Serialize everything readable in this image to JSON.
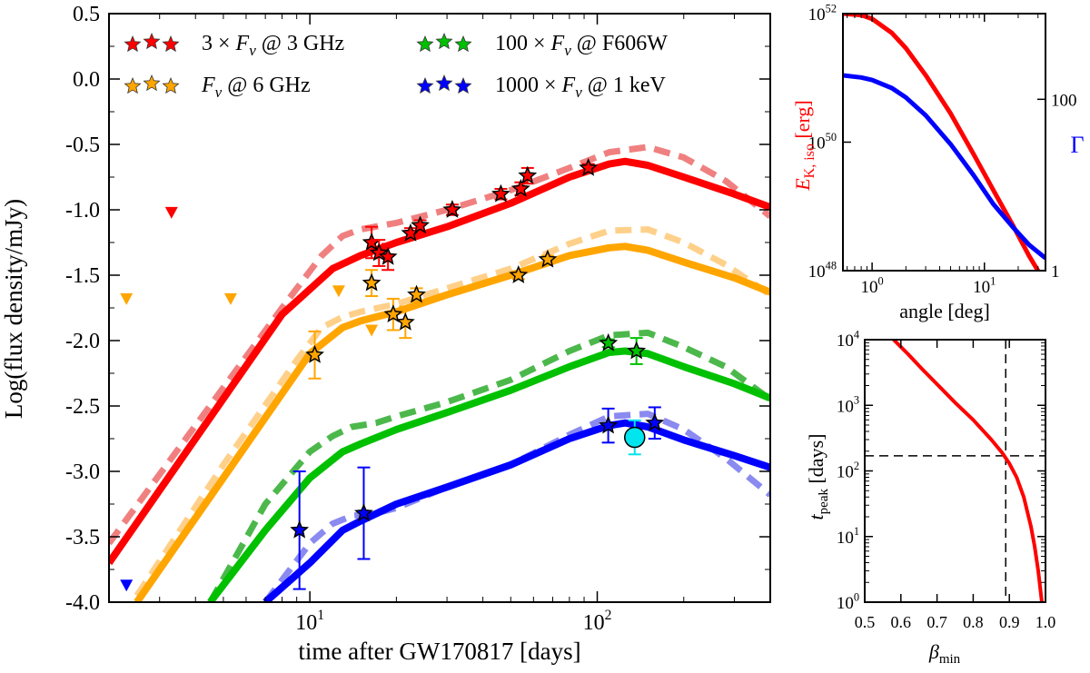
{
  "chart_data": [
    {
      "type": "line",
      "xlabel": "time after GW170817 [days]",
      "ylabel": "Log(flux density/mJy)",
      "xscale": "log",
      "xlim": [
        2,
        400
      ],
      "ylim": [
        -4.0,
        0.5
      ],
      "ytick_labels": [
        "-4.0",
        "-3.5",
        "-3.0",
        "-2.5",
        "-2.0",
        "-1.5",
        "-1.0",
        "-0.5",
        "0.0",
        "0.5"
      ],
      "ytick_values": [
        -4.0,
        -3.5,
        -3.0,
        -2.5,
        -2.0,
        -1.5,
        -1.0,
        -0.5,
        0.0,
        0.5
      ],
      "xtick_labels": [
        "10¹",
        "10²"
      ],
      "xtick_bases": [
        "10",
        "10"
      ],
      "xtick_exps": [
        "1",
        "2"
      ],
      "xtick_values": [
        10,
        100
      ],
      "legend": {
        "placement": "top-left",
        "entries": [
          {
            "label": "3 × Fν @ 3 GHz",
            "pre": "3 × ",
            "sym": "F",
            "sub": "ν",
            "post": " @ 3 GHz",
            "color": "#ff0000"
          },
          {
            "label": "Fν @ 6 GHz",
            "pre": "",
            "sym": "F",
            "sub": "ν",
            "post": " @ 6 GHz",
            "color": "#ffa500"
          },
          {
            "label": "100 × Fν @ F606W",
            "pre": "100 × ",
            "sym": "F",
            "sub": "ν",
            "post": " @ F606W",
            "color": "#00c000"
          },
          {
            "label": "1000 × Fν @ 1 keV",
            "pre": "1000 × ",
            "sym": "F",
            "sub": "ν",
            "post": " @ 1 keV",
            "color": "#0000ff"
          }
        ]
      },
      "series": [
        {
          "name": "3 GHz model",
          "color": "#ff0000",
          "style": "solid",
          "x": [
            2,
            4,
            8,
            12,
            15,
            20,
            30,
            50,
            80,
            110,
            125,
            150,
            200,
            300,
            400
          ],
          "y": [
            -3.7,
            -2.75,
            -1.8,
            -1.45,
            -1.35,
            -1.25,
            -1.13,
            -0.95,
            -0.75,
            -0.65,
            -0.63,
            -0.66,
            -0.75,
            -0.88,
            -0.98
          ]
        },
        {
          "name": "3 GHz model (alt)",
          "color": "#f08080",
          "style": "dashed",
          "x": [
            2,
            4,
            8,
            11,
            13,
            15,
            20,
            30,
            50,
            80,
            110,
            150,
            200,
            280,
            400
          ],
          "y": [
            -3.55,
            -2.65,
            -1.75,
            -1.35,
            -1.2,
            -1.15,
            -1.1,
            -1.0,
            -0.85,
            -0.68,
            -0.56,
            -0.52,
            -0.6,
            -0.78,
            -1.05
          ]
        },
        {
          "name": "6 GHz model",
          "color": "#ffa500",
          "style": "solid",
          "x": [
            2.5,
            5,
            10,
            13,
            15,
            20,
            30,
            50,
            80,
            110,
            125,
            150,
            200,
            300,
            400
          ],
          "y": [
            -4.0,
            -3.05,
            -2.1,
            -1.9,
            -1.85,
            -1.78,
            -1.65,
            -1.5,
            -1.35,
            -1.29,
            -1.28,
            -1.31,
            -1.4,
            -1.52,
            -1.63
          ]
        },
        {
          "name": "6 GHz model (alt)",
          "color": "#ffd08a",
          "style": "dashed",
          "x": [
            2.5,
            5,
            9,
            11,
            13,
            15,
            20,
            30,
            50,
            80,
            110,
            150,
            200,
            280,
            400
          ],
          "y": [
            -3.95,
            -2.95,
            -2.15,
            -1.9,
            -1.82,
            -1.78,
            -1.72,
            -1.6,
            -1.45,
            -1.26,
            -1.16,
            -1.15,
            -1.25,
            -1.42,
            -1.65
          ]
        },
        {
          "name": "F606W model",
          "color": "#00c000",
          "style": "solid",
          "x": [
            4.5,
            7,
            10,
            13,
            15,
            20,
            30,
            50,
            80,
            110,
            125,
            150,
            200,
            300,
            400
          ],
          "y": [
            -4.0,
            -3.45,
            -3.05,
            -2.85,
            -2.79,
            -2.68,
            -2.55,
            -2.38,
            -2.2,
            -2.09,
            -2.08,
            -2.1,
            -2.2,
            -2.33,
            -2.44
          ]
        },
        {
          "name": "F606W model (alt)",
          "color": "#4cb84c",
          "style": "dashed",
          "x": [
            4.5,
            7,
            10,
            12,
            14,
            17,
            20,
            30,
            50,
            80,
            110,
            150,
            200,
            280,
            400
          ],
          "y": [
            -4.0,
            -3.25,
            -2.85,
            -2.73,
            -2.66,
            -2.63,
            -2.58,
            -2.47,
            -2.3,
            -2.08,
            -1.96,
            -1.94,
            -2.05,
            -2.2,
            -2.45
          ]
        },
        {
          "name": "1 keV model",
          "color": "#0000ff",
          "style": "solid",
          "x": [
            7,
            10,
            13,
            15,
            20,
            30,
            50,
            80,
            110,
            125,
            150,
            200,
            300,
            400
          ],
          "y": [
            -4.0,
            -3.7,
            -3.45,
            -3.38,
            -3.25,
            -3.12,
            -2.95,
            -2.75,
            -2.65,
            -2.63,
            -2.66,
            -2.76,
            -2.88,
            -2.97
          ]
        },
        {
          "name": "1 keV model (alt)",
          "color": "#8a8af0",
          "style": "dashed",
          "x": [
            7,
            10,
            12,
            14,
            17,
            20,
            30,
            50,
            80,
            110,
            150,
            200,
            280,
            400
          ],
          "y": [
            -4.0,
            -3.55,
            -3.4,
            -3.34,
            -3.32,
            -3.28,
            -3.12,
            -2.95,
            -2.72,
            -2.58,
            -2.56,
            -2.68,
            -2.9,
            -3.18
          ]
        }
      ],
      "data_points": [
        {
          "band": "3 GHz",
          "color": "#ff0000",
          "points": [
            {
              "x": 16.4,
              "y": -1.25,
              "yerr": 0.12
            },
            {
              "x": 17.4,
              "y": -1.33,
              "yerr": 0.1
            },
            {
              "x": 18.7,
              "y": -1.36,
              "yerr": 0.1
            },
            {
              "x": 22.4,
              "y": -1.18,
              "yerr": 0.04
            },
            {
              "x": 24.2,
              "y": -1.12,
              "yerr": 0.04
            },
            {
              "x": 31.3,
              "y": -1.0,
              "yerr": 0.04
            },
            {
              "x": 46.2,
              "y": -0.88,
              "yerr": 0.04
            },
            {
              "x": 54.2,
              "y": -0.84,
              "yerr": 0.05
            },
            {
              "x": 57.2,
              "y": -0.74,
              "yerr": 0.06
            },
            {
              "x": 93.1,
              "y": -0.68,
              "yerr": 0.03
            }
          ]
        },
        {
          "band": "6 GHz",
          "color": "#ffa500",
          "points": [
            {
              "x": 10.4,
              "y": -2.11,
              "yerr": 0.18
            },
            {
              "x": 16.4,
              "y": -1.56,
              "yerr": 0.1
            },
            {
              "x": 19.5,
              "y": -1.8,
              "yerr": 0.12
            },
            {
              "x": 21.5,
              "y": -1.86,
              "yerr": 0.12
            },
            {
              "x": 23.5,
              "y": -1.65,
              "yerr": 0.05
            },
            {
              "x": 53.2,
              "y": -1.5,
              "yerr": 0.03
            },
            {
              "x": 67.2,
              "y": -1.38,
              "yerr": 0.03
            }
          ]
        },
        {
          "band": "F606W",
          "color": "#00c000",
          "points": [
            {
              "x": 109.3,
              "y": -2.02,
              "yerr": 0.03
            },
            {
              "x": 136.9,
              "y": -2.08,
              "yerr": 0.1
            }
          ]
        },
        {
          "band": "1 keV",
          "color": "#0000ff",
          "points": [
            {
              "x": 9.2,
              "y": -3.45,
              "yerr": 0.45
            },
            {
              "x": 15.4,
              "y": -3.32,
              "yerr": 0.35
            },
            {
              "x": 109.2,
              "y": -2.65,
              "yerr": 0.13
            },
            {
              "x": 158.5,
              "y": -2.63,
              "yerr": 0.12
            }
          ]
        }
      ],
      "extra_points": [
        {
          "name": "1 keV cyan point",
          "color": "#00e5ee",
          "x": 135,
          "y": -2.74,
          "yerr": 0.13
        }
      ],
      "upper_limits": [
        {
          "color": "#ff0000",
          "x": 3.3,
          "y": -1.02
        },
        {
          "color": "#ffa500",
          "x": 2.3,
          "y": -1.68
        },
        {
          "color": "#ffa500",
          "x": 5.3,
          "y": -1.68
        },
        {
          "color": "#ffa500",
          "x": 12.6,
          "y": -1.62
        },
        {
          "color": "#ffa500",
          "x": 16.4,
          "y": -1.92
        },
        {
          "color": "#0000ff",
          "x": 2.3,
          "y": -3.87
        }
      ]
    },
    {
      "type": "line",
      "xlabel": "angle [deg]",
      "ylabel_left": "E",
      "ylabel_left_sub": "K, iso",
      "ylabel_left_unit": " [erg]",
      "ylabel_right": "Γ",
      "xscale": "log",
      "xlim": [
        0.55,
        35
      ],
      "yscale_left": "log",
      "ylim_left": [
        1e+48,
        1e+52
      ],
      "yscale_right": "log",
      "ylim_right": [
        1,
        1000
      ],
      "xtick_bases": [
        "10",
        "10"
      ],
      "xtick_exps": [
        "0",
        "1"
      ],
      "xtick_values": [
        1,
        10
      ],
      "ytick_left_bases": [
        "10",
        "10",
        "10"
      ],
      "ytick_left_exps": [
        "48",
        "50",
        "52"
      ],
      "ytick_left_values": [
        1e+48,
        1e+50,
        1e+52
      ],
      "ytick_right_labels": [
        "1",
        "100"
      ],
      "ytick_right_values": [
        1,
        100
      ],
      "series": [
        {
          "name": "E_K,iso",
          "color": "#ff0000",
          "axis": "left",
          "x": [
            0.55,
            0.8,
            1,
            1.5,
            2,
            3,
            5,
            8,
            12,
            18,
            25,
            30,
            35
          ],
          "y": [
            1e+52,
            9.5e+51,
            8.3e+51,
            5e+51,
            2.9e+51,
            1.1e+51,
            2.8e+50,
            6.5e+49,
            1.8e+49,
            5e+48,
            1.7e+48,
            1e+48,
            5e+47
          ]
        },
        {
          "name": "Gamma",
          "color": "#0000ff",
          "axis": "right",
          "x": [
            0.55,
            0.8,
            1,
            1.5,
            2,
            3,
            5,
            8,
            12,
            18,
            25,
            35
          ],
          "y": [
            190,
            180,
            168,
            135,
            105,
            65,
            30,
            13,
            6,
            3.2,
            2.0,
            1.4
          ]
        }
      ]
    },
    {
      "type": "line",
      "xlabel": "β",
      "xlabel_sub": "min",
      "ylabel": "t",
      "ylabel_sub": "peak",
      "ylabel_unit": " [days]",
      "xlim": [
        0.5,
        1.0
      ],
      "yscale": "log",
      "ylim": [
        1,
        10000
      ],
      "xtick_labels": [
        "0.5",
        "0.6",
        "0.7",
        "0.8",
        "0.9",
        "1.0"
      ],
      "xtick_values": [
        0.5,
        0.6,
        0.7,
        0.8,
        0.9,
        1.0
      ],
      "ytick_bases": [
        "10",
        "10",
        "10",
        "10",
        "10"
      ],
      "ytick_exps": [
        "0",
        "1",
        "2",
        "3",
        "4"
      ],
      "ytick_values": [
        1,
        10,
        100,
        1000,
        10000
      ],
      "series": [
        {
          "name": "t_peak",
          "color": "#ff0000",
          "x": [
            0.58,
            0.62,
            0.66,
            0.7,
            0.75,
            0.8,
            0.85,
            0.88,
            0.9,
            0.92,
            0.94,
            0.96,
            0.97,
            0.98,
            0.99
          ],
          "y": [
            10000,
            6000,
            3500,
            2100,
            1100,
            600,
            300,
            190,
            130,
            80,
            40,
            14,
            7,
            3,
            1
          ]
        }
      ],
      "reference_lines": [
        {
          "orientation": "vertical",
          "value": 0.89,
          "style": "dashed",
          "color": "#000000"
        },
        {
          "orientation": "horizontal",
          "value": 170,
          "style": "dashed",
          "color": "#000000"
        }
      ]
    }
  ]
}
